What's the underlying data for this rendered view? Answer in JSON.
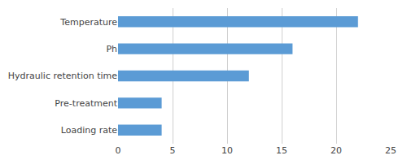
{
  "chart_data": {
    "type": "bar",
    "orientation": "horizontal",
    "categories": [
      "Loading rate",
      "Pre-treatment",
      "Hydraulic retention time",
      "Ph",
      "Temperature"
    ],
    "values": [
      4,
      4,
      12,
      16,
      22
    ],
    "color": "#5B9BD5",
    "xlim": [
      0,
      25
    ],
    "xticks": [
      0,
      5,
      10,
      15,
      20,
      25
    ],
    "grid": true
  }
}
